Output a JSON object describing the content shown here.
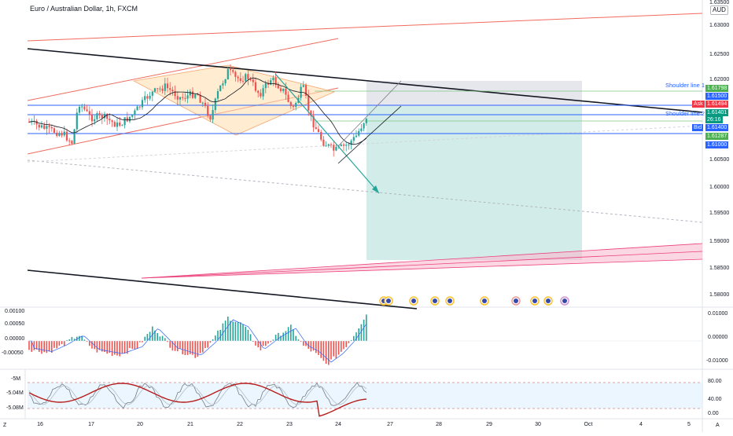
{
  "chart": {
    "title": "Euro / Australian Dollar, 1h, FXCM",
    "currency": "AUD",
    "price_ticks": [
      "1.63500",
      "1.63000",
      "1.62500",
      "1.62000",
      "1.61500",
      "1.61000",
      "1.60500",
      "1.60000",
      "1.59500",
      "1.59000",
      "1.58500",
      "1.58000"
    ],
    "price_tags": {
      "p1": "1.61798",
      "p2": "1.61500",
      "ask_label": "Ask",
      "ask": "1.61494",
      "last": "1.61401",
      "countdown": "26:16",
      "bid_label": "Bid",
      "bid": "1.61400",
      "p3": "1.61287",
      "p4": "1.61000"
    },
    "shoulder_line_1": "Shoulder line 1",
    "shoulder_line_2": "Shoulder line 2",
    "x_labels": [
      "16",
      "17",
      "20",
      "21",
      "22",
      "23",
      "24",
      "27",
      "28",
      "29",
      "30",
      "Oct",
      "4",
      "5"
    ],
    "corner_left": "Z",
    "corner_right": "A",
    "colors": {
      "up": "#26a69a",
      "down": "#ef5350",
      "blue_line": "#2962ff",
      "red_channel": "#f06b5e",
      "pink_band": "#f48fb1",
      "target_zone": "#b2dfdb",
      "stop_zone": "#d1d4dc",
      "ask_tag": "#f23645",
      "last_tag": "#089981",
      "bid_tag": "#2962ff",
      "green_tag": "#4caf50"
    }
  },
  "macd": {
    "left_ticks": [
      "0.00100",
      "0.00050",
      "0.00000",
      "-0.00050"
    ],
    "right_ticks": [
      "0.01000",
      "0.00000",
      "-0.01000"
    ]
  },
  "stoch": {
    "left_ticks": [
      "-5M",
      "-5.04M",
      "-5.08M"
    ],
    "right_ticks": [
      "80.00",
      "40.00",
      "0.00"
    ]
  }
}
